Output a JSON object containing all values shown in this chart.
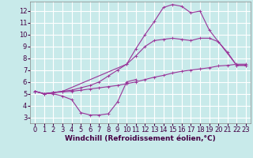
{
  "bg_color": "#c8eaea",
  "grid_color": "#ffffff",
  "line_color": "#993399",
  "xlabel": "Windchill (Refroidissement éolien,°C)",
  "xlabel_fontsize": 6.5,
  "xlim": [
    -0.5,
    23.5
  ],
  "ylim": [
    2.5,
    12.8
  ],
  "xticks": [
    0,
    1,
    2,
    3,
    4,
    5,
    6,
    7,
    8,
    9,
    10,
    11,
    12,
    13,
    14,
    15,
    16,
    17,
    18,
    19,
    20,
    21,
    22,
    23
  ],
  "yticks": [
    3,
    4,
    5,
    6,
    7,
    8,
    9,
    10,
    11,
    12
  ],
  "tick_fontsize": 6,
  "line1_x": [
    0,
    1,
    2,
    3,
    4,
    5,
    6,
    7,
    8,
    9,
    10,
    11
  ],
  "line1_y": [
    5.2,
    5.0,
    5.0,
    4.8,
    4.5,
    3.4,
    3.2,
    3.2,
    3.3,
    4.3,
    6.0,
    6.2
  ],
  "line2_x": [
    0,
    1,
    2,
    3,
    4,
    5,
    6,
    7,
    8,
    9,
    10,
    11,
    12,
    13,
    14,
    15,
    16,
    17,
    18,
    19,
    20,
    21,
    22,
    23
  ],
  "line2_y": [
    5.2,
    5.0,
    5.1,
    5.15,
    5.2,
    5.3,
    5.4,
    5.5,
    5.6,
    5.7,
    5.85,
    6.0,
    6.2,
    6.4,
    6.55,
    6.75,
    6.9,
    7.0,
    7.1,
    7.2,
    7.35,
    7.4,
    7.5,
    7.5
  ],
  "line3_x": [
    0,
    1,
    2,
    3,
    4,
    5,
    6,
    7,
    8,
    9,
    10,
    11,
    12,
    13,
    14,
    15,
    16,
    17,
    18,
    19,
    20,
    21,
    22,
    23
  ],
  "line3_y": [
    5.2,
    5.0,
    5.1,
    5.2,
    5.3,
    5.5,
    5.7,
    6.0,
    6.5,
    7.0,
    7.5,
    8.2,
    9.0,
    9.5,
    9.6,
    9.7,
    9.6,
    9.5,
    9.7,
    9.7,
    9.4,
    8.5,
    7.4,
    7.4
  ],
  "line4_x": [
    0,
    1,
    2,
    3,
    10,
    11,
    12,
    13,
    14,
    15,
    16,
    17,
    18,
    19,
    22,
    23
  ],
  "line4_y": [
    5.2,
    5.0,
    5.1,
    5.2,
    7.5,
    8.8,
    10.0,
    11.1,
    12.3,
    12.55,
    12.4,
    11.85,
    12.0,
    10.4,
    7.4,
    7.4
  ]
}
